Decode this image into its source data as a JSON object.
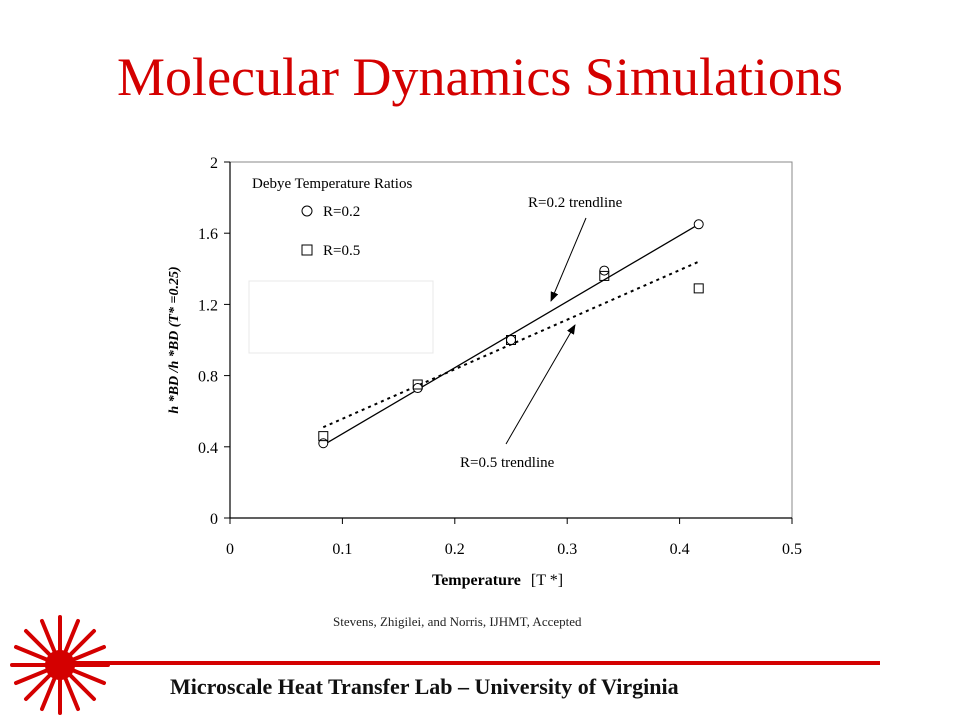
{
  "slide": {
    "title": "Molecular Dynamics Simulations",
    "citation": "Stevens, Zhigilei, and Norris, IJHMT, Accepted",
    "footer": "Microscale Heat Transfer Lab – University of Virginia",
    "accent_color": "#d40000",
    "logo_icon": "red-starburst-icon"
  },
  "chart_data": {
    "type": "scatter",
    "xlabel_main": "Temperature",
    "xlabel_unit": "[T *]",
    "ylabel": "h *BD /h *BD (T* =0.25)",
    "xlim": [
      0,
      0.5
    ],
    "ylim": [
      0,
      2
    ],
    "x_ticks": [
      "0",
      "0.1",
      "0.2",
      "0.3",
      "0.4",
      "0.5"
    ],
    "y_ticks": [
      "0",
      "0.4",
      "0.8",
      "1.2",
      "1.6",
      "2"
    ],
    "legend_title": "Debye Temperature Ratios",
    "legend_position": "top-left",
    "grid": false,
    "series": [
      {
        "name": "R=0.2",
        "marker": "circle",
        "x": [
          0.083,
          0.167,
          0.25,
          0.333,
          0.417
        ],
        "y": [
          0.42,
          0.73,
          1.0,
          1.39,
          1.65
        ]
      },
      {
        "name": "R=0.5",
        "marker": "square",
        "x": [
          0.083,
          0.167,
          0.25,
          0.333,
          0.417
        ],
        "y": [
          0.46,
          0.75,
          1.0,
          1.36,
          1.29
        ]
      }
    ],
    "trendlines": [
      {
        "label": "R=0.2 trendline",
        "style": "solid",
        "x": [
          0.083,
          0.417
        ],
        "y": [
          0.41,
          1.65
        ]
      },
      {
        "label": "R=0.5 trendline",
        "style": "dotted",
        "x": [
          0.083,
          0.417
        ],
        "y": [
          0.51,
          1.44
        ]
      }
    ]
  }
}
